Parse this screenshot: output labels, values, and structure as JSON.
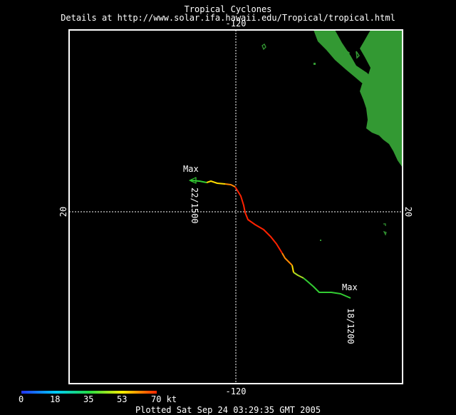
{
  "header": {
    "title": "Tropical Cyclones",
    "subtitle": "Details at http://www.solar.ifa.hawaii.edu/Tropical/tropical.html"
  },
  "map": {
    "longitude_label_top": "-120",
    "longitude_label_bottom": "-120",
    "latitude_label_left": "20",
    "latitude_label_right": "20",
    "land_color": "#339933",
    "frame_color": "#ffffff",
    "grid_style": "dotted white"
  },
  "track": {
    "start_label": "Max",
    "end_label": "Max",
    "start_time": "18/1200",
    "end_time": "22/1500",
    "segment_colors": [
      "#33cc33",
      "#aadd22",
      "#ffdd00",
      "#ff8800",
      "#ff2200"
    ]
  },
  "legend": {
    "ticks": [
      "0",
      "18",
      "35",
      "53",
      "70 kt"
    ],
    "gradient_colors": [
      "#2233ff",
      "#00ccff",
      "#22dd44",
      "#ffee00",
      "#ff2200"
    ]
  },
  "footer": {
    "text": "Plotted Sat Sep 24 03:29:35 GMT 2005"
  }
}
